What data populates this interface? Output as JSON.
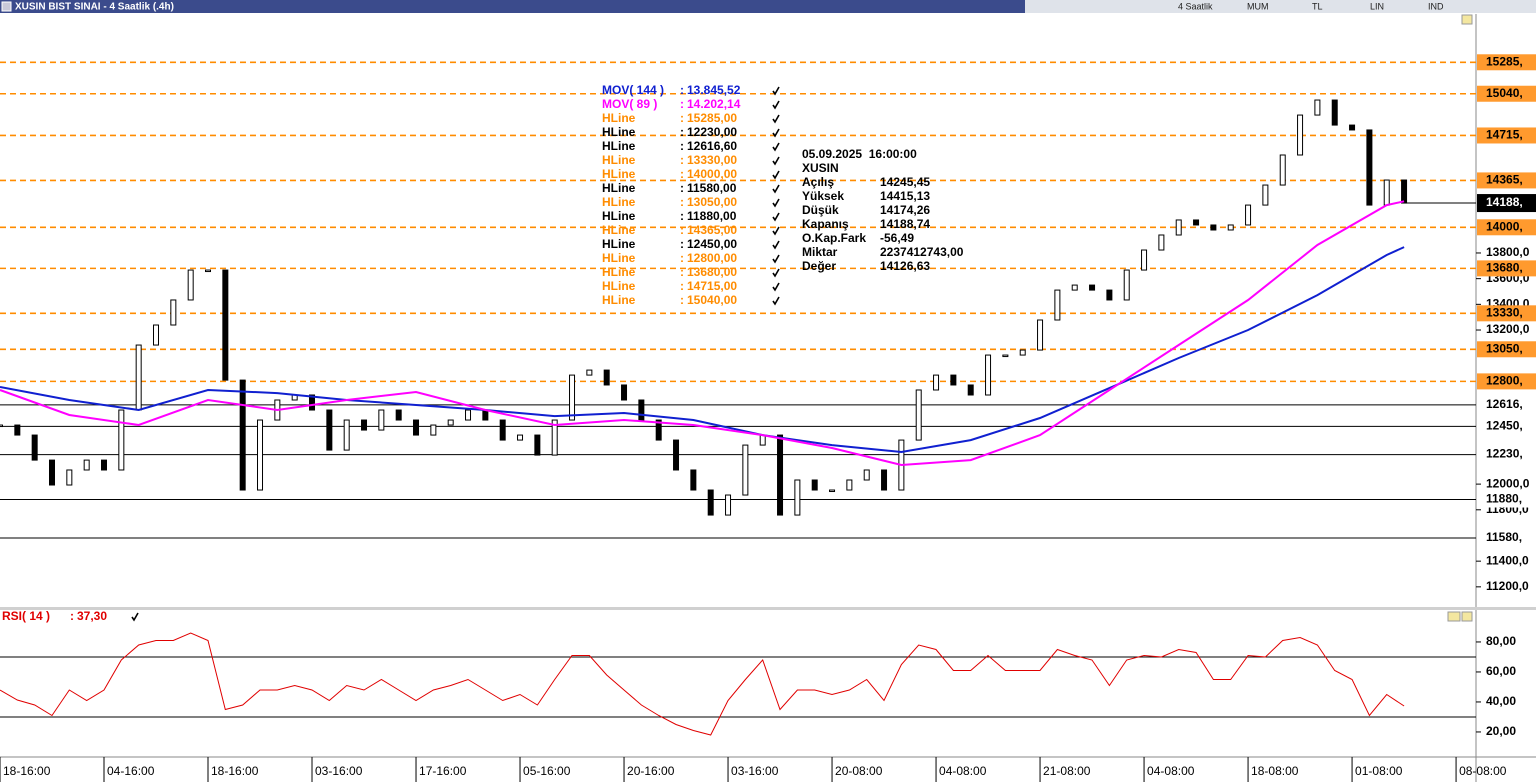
{
  "window": {
    "title": "XUSIN BIST SINAI - 4 Saatlik (.4h)",
    "toolbar": [
      "4 Saatlik",
      "MUM",
      "TL",
      "LIN",
      "IND"
    ]
  },
  "chart_data": [
    {
      "type": "line",
      "xlim": [
        0,
        85.15
      ],
      "ylim": [
        11043,
        15661
      ],
      "yticks": [
        {
          "value": 11200,
          "label": "11200,0"
        },
        {
          "value": 11400,
          "label": "11400,0"
        },
        {
          "value": 11800,
          "label": "11800,0"
        },
        {
          "value": 12000,
          "label": "12000,0"
        },
        {
          "value": 13200,
          "label": "13200,0"
        },
        {
          "value": 13400,
          "label": "13400,0"
        },
        {
          "value": 13600,
          "label": "13600,0"
        },
        {
          "value": 13800,
          "label": "13800,0"
        }
      ],
      "series": [
        {
          "name": "XUSIN",
          "type": "candle",
          "color": "#000000",
          "last_label": "14188,",
          "values": [
            12460,
            12382,
            12187,
            11993,
            12110,
            12187,
            12110,
            12577,
            13083,
            13239,
            13434,
            13667,
            13667,
            12810,
            11954,
            12499,
            12655,
            12694,
            12577,
            12265,
            12499,
            12421,
            12577,
            12499,
            12382,
            12460,
            12499,
            12577,
            12499,
            12343,
            12382,
            12226,
            12499,
            12849,
            12888,
            12772,
            12655,
            12499,
            12343,
            12110,
            11954,
            11759,
            11915,
            12304,
            12382,
            11759,
            12032,
            11954,
            11954,
            12032,
            12110,
            11954,
            12343,
            12733,
            12849,
            12772,
            12694,
            13005,
            13005,
            13044,
            13278,
            13511,
            13550,
            13511,
            13434,
            13667,
            13823,
            13940,
            14057,
            14018,
            13979,
            14018,
            14173,
            14329,
            14563,
            14874,
            14991,
            14796,
            14758,
            14173,
            14368,
            14188.74
          ]
        },
        {
          "name": "MOV( 144 )",
          "type": "line",
          "color": "#1020d0",
          "value_label": "13.845,52",
          "x": [
            0,
            4,
            8,
            12,
            16,
            20,
            24,
            28,
            32,
            36,
            40,
            44,
            48,
            52,
            56,
            60,
            64,
            68,
            72,
            76,
            80,
            81
          ],
          "values": [
            12756,
            12655,
            12577,
            12733,
            12709,
            12655,
            12616,
            12577,
            12530,
            12554,
            12499,
            12382,
            12304,
            12250,
            12343,
            12515,
            12748,
            12982,
            13200,
            13472,
            13784,
            13845.52
          ]
        },
        {
          "name": "MOV( 89 )",
          "type": "line",
          "color": "#ff00ff",
          "value_label": "14.202,14",
          "x": [
            0,
            4,
            8,
            12,
            16,
            20,
            24,
            28,
            32,
            36,
            40,
            44,
            48,
            52,
            56,
            60,
            64,
            68,
            72,
            76,
            80,
            81
          ],
          "values": [
            12733,
            12538,
            12460,
            12655,
            12577,
            12655,
            12717,
            12577,
            12460,
            12499,
            12460,
            12382,
            12281,
            12149,
            12187,
            12382,
            12733,
            13083,
            13434,
            13862,
            14173,
            14202.14
          ]
        }
      ],
      "hlines": [
        {
          "name": "HLine",
          "value": 15285,
          "value_label": "15285,00",
          "axis_label": "15285,",
          "color": "#ff8c00",
          "style": "dashed"
        },
        {
          "name": "HLine",
          "value": 12230,
          "value_label": "12230,00",
          "axis_label": "12230,",
          "color": "#000000",
          "style": "solid"
        },
        {
          "name": "HLine",
          "value": 12616.6,
          "value_label": "12616,60",
          "axis_label": "12616,",
          "color": "#000000",
          "style": "solid"
        },
        {
          "name": "HLine",
          "value": 13330,
          "value_label": "13330,00",
          "axis_label": "13330,",
          "color": "#ff8c00",
          "style": "dashed"
        },
        {
          "name": "HLine",
          "value": 14000,
          "value_label": "14000,00",
          "axis_label": "14000,",
          "color": "#ff8c00",
          "style": "dashed"
        },
        {
          "name": "HLine",
          "value": 11580,
          "value_label": "11580,00",
          "axis_label": "11580,",
          "color": "#000000",
          "style": "solid"
        },
        {
          "name": "HLine",
          "value": 13050,
          "value_label": "13050,00",
          "axis_label": "13050,",
          "color": "#ff8c00",
          "style": "dashed"
        },
        {
          "name": "HLine",
          "value": 11880,
          "value_label": "11880,00",
          "axis_label": "11880,",
          "color": "#000000",
          "style": "solid"
        },
        {
          "name": "HLine",
          "value": 14365,
          "value_label": "14365,00",
          "axis_label": "14365,",
          "color": "#ff8c00",
          "style": "dashed"
        },
        {
          "name": "HLine",
          "value": 12450,
          "value_label": "12450,00",
          "axis_label": "12450,",
          "color": "#000000",
          "style": "solid"
        },
        {
          "name": "HLine",
          "value": 12800,
          "value_label": "12800,00",
          "axis_label": "12800,",
          "color": "#ff8c00",
          "style": "dashed"
        },
        {
          "name": "HLine",
          "value": 13680,
          "value_label": "13680,00",
          "axis_label": "13680,",
          "color": "#ff8c00",
          "style": "dashed"
        },
        {
          "name": "HLine",
          "value": 14715,
          "value_label": "14715,00",
          "axis_label": "14715,",
          "color": "#ff8c00",
          "style": "dashed"
        },
        {
          "name": "HLine",
          "value": 15040,
          "value_label": "15040,00",
          "axis_label": "15040,",
          "color": "#ff8c00",
          "style": "dashed"
        }
      ],
      "info": {
        "datetime": "05.09.2025  16:00:00",
        "symbol": "XUSIN",
        "rows": [
          [
            "Açılış",
            "14245,45"
          ],
          [
            "Yüksek",
            "14415,13"
          ],
          [
            "Düşük",
            "14174,26"
          ],
          [
            "Kapanış",
            "14188,74"
          ],
          [
            "O.Kap.Fark",
            "-56,49"
          ],
          [
            "Miktar",
            "2237412743,00"
          ],
          [
            "Değer",
            "14126,63"
          ]
        ]
      }
    },
    {
      "type": "line",
      "xlim": [
        0,
        85.15
      ],
      "ylim": [
        3.3,
        101.3
      ],
      "yticks": [
        {
          "value": 20,
          "label": "20,00"
        },
        {
          "value": 40,
          "label": "40,00"
        },
        {
          "value": 60,
          "label": "60,00"
        },
        {
          "value": 80,
          "label": "80,00"
        }
      ],
      "levels": [
        70,
        30
      ],
      "xticks": [
        {
          "value": 0,
          "label": "18-16:00"
        },
        {
          "value": 6,
          "label": "04-16:00"
        },
        {
          "value": 12,
          "label": "18-16:00"
        },
        {
          "value": 18,
          "label": "03-16:00"
        },
        {
          "value": 24,
          "label": "17-16:00"
        },
        {
          "value": 30,
          "label": "05-16:00"
        },
        {
          "value": 36,
          "label": "20-16:00"
        },
        {
          "value": 42,
          "label": "03-16:00"
        },
        {
          "value": 48,
          "label": "20-08:00"
        },
        {
          "value": 54,
          "label": "04-08:00"
        },
        {
          "value": 60,
          "label": "21-08:00"
        },
        {
          "value": 66,
          "label": "04-08:00"
        },
        {
          "value": 72,
          "label": "18-08:00"
        },
        {
          "value": 78,
          "label": "01-08:00"
        },
        {
          "value": 84,
          "label": "08-08:00"
        }
      ],
      "series": [
        {
          "name": "RSI( 14 )",
          "type": "line",
          "color": "#e00000",
          "value_label": "37,30",
          "values": [
            48,
            41.3,
            38,
            31,
            48,
            41,
            48,
            68,
            78,
            81,
            81,
            86,
            81,
            35,
            38,
            48,
            48,
            51,
            48,
            41,
            51,
            48,
            55,
            48,
            41,
            48,
            51,
            55,
            48,
            41,
            45,
            38,
            55,
            71,
            71,
            58,
            48,
            38,
            31,
            25,
            21,
            18,
            41,
            55,
            68,
            35,
            48,
            48,
            45,
            48,
            55,
            41,
            65,
            78,
            75,
            61,
            61,
            71,
            61,
            61,
            61,
            75,
            71,
            68,
            51,
            68,
            71,
            70,
            75,
            73,
            55,
            55,
            71,
            70,
            81,
            83,
            78,
            61,
            55,
            31,
            45,
            37.3
          ]
        }
      ]
    }
  ]
}
